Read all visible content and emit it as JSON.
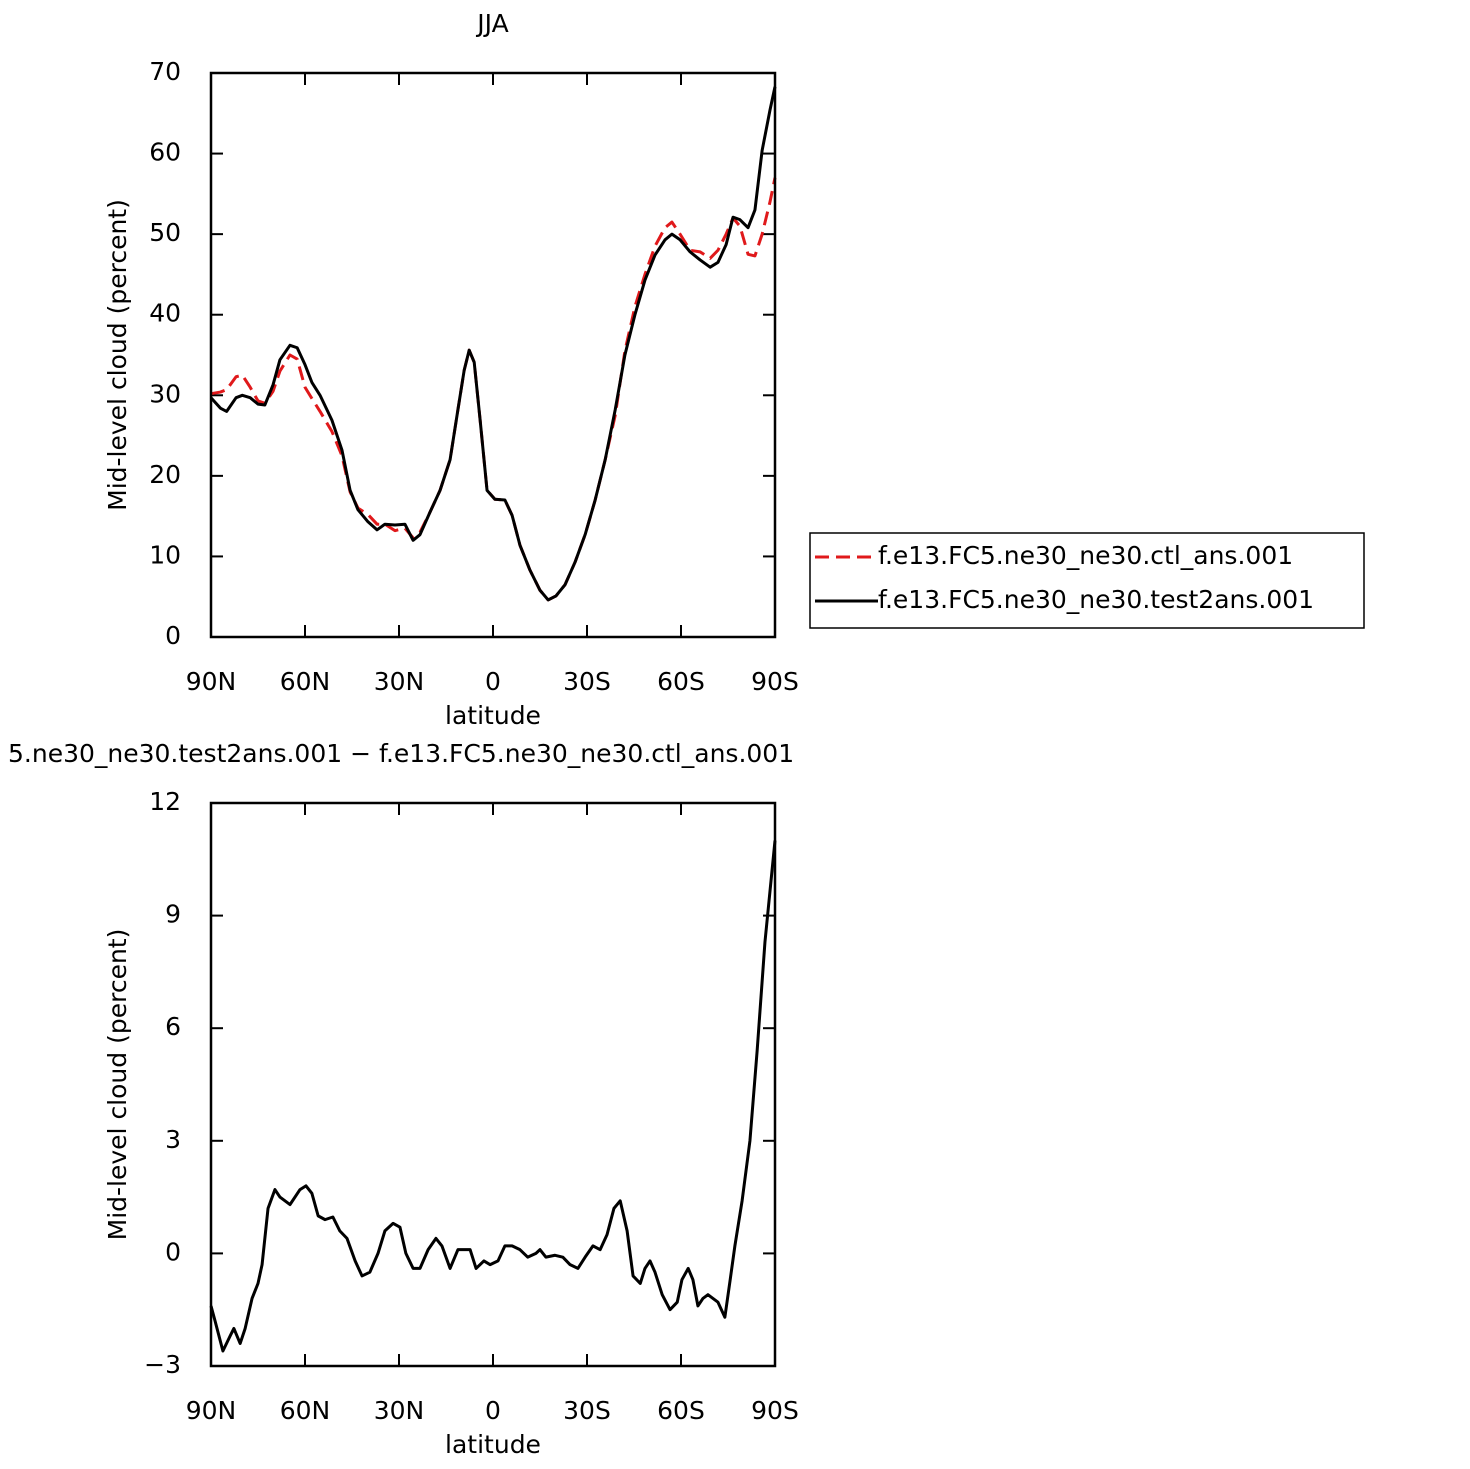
{
  "chart_data": [
    {
      "type": "line",
      "title": "JJA",
      "xlabel": "latitude",
      "ylabel": "Mid-level cloud (percent)",
      "x": [
        90,
        87,
        85,
        82,
        80,
        77.5,
        75,
        72.8,
        70.2,
        68,
        64.8,
        62.5,
        60,
        57.8,
        55.2,
        51.4,
        48.2,
        45.6,
        43.1,
        39.9,
        37,
        34.5,
        31.3,
        28.1,
        25.5,
        23.3,
        20.1,
        16.9,
        13.7,
        11.2,
        9.2,
        7.6,
        6,
        4.1,
        1.9,
        -0.6,
        -3.8,
        -6.1,
        -8.6,
        -11.8,
        -15,
        -17.6,
        -20.1,
        -23,
        -26.2,
        -29.4,
        -32.6,
        -35.8,
        -39,
        -42.1,
        -45.3,
        -48.5,
        -51.7,
        -54.9,
        -57.1,
        -59.7,
        -62.9,
        -66.1,
        -69.3,
        -71.8,
        -74.4,
        -76.6,
        -78.8,
        -81.4,
        -83.6,
        -85.9,
        -88.4,
        -90
      ],
      "series": [
        {
          "name": "f.e13.FC5.ne30_ne30.ctl_ans.001",
          "color": "#e0191b",
          "linestyle": "dashed",
          "values": [
            30.2,
            30.4,
            30.7,
            32.3,
            32.5,
            31,
            29.3,
            29,
            30.5,
            33,
            35,
            34.5,
            31,
            29.6,
            28,
            25.5,
            22.5,
            18,
            16,
            15.2,
            14,
            14,
            13.2,
            13.5,
            12.3,
            13,
            15.5,
            18.2,
            22,
            28.2,
            33.1,
            35.6,
            34.1,
            26.9,
            18.2,
            17.1,
            17,
            15.1,
            11.4,
            8.3,
            5.8,
            4.6,
            5.1,
            6.5,
            9.3,
            12.7,
            17,
            22,
            27.5,
            35.5,
            41,
            45,
            48.5,
            50.8,
            51.5,
            50,
            48,
            47.8,
            47,
            48,
            50,
            52,
            51,
            47.5,
            47.3,
            50,
            54,
            57
          ]
        },
        {
          "name": "f.e13.FC5.ne30_ne30.test2ans.001",
          "color": "#000000",
          "linestyle": "solid",
          "values": [
            29.7,
            28.4,
            28,
            29.7,
            30,
            29.7,
            28.9,
            28.8,
            31.3,
            34.4,
            36.2,
            35.9,
            33.8,
            31.6,
            30,
            26.9,
            23.2,
            18.2,
            15.8,
            14.3,
            13.3,
            14,
            13.9,
            14,
            12,
            12.7,
            15.5,
            18.2,
            22,
            28.2,
            33.1,
            35.6,
            34.1,
            26.9,
            18.2,
            17.1,
            17,
            15.1,
            11.4,
            8.3,
            5.8,
            4.6,
            5.1,
            6.5,
            9.3,
            12.7,
            17,
            22,
            28.2,
            35,
            40,
            44.3,
            47.4,
            49.3,
            50,
            49.3,
            47.8,
            46.8,
            45.9,
            46.5,
            48.7,
            52.1,
            51.8,
            50.8,
            53,
            60.4,
            65.4,
            68.3
          ]
        }
      ],
      "xlim": [
        90,
        -90
      ],
      "xticks": [
        {
          "value": 90,
          "label": "90N"
        },
        {
          "value": 60,
          "label": "60N"
        },
        {
          "value": 30,
          "label": "30N"
        },
        0,
        {
          "value": -30,
          "label": "30S"
        },
        {
          "value": -60,
          "label": "60S"
        },
        {
          "value": -90,
          "label": "90S"
        }
      ],
      "ylim": [
        0,
        70
      ],
      "yticks": [
        0,
        10,
        20,
        30,
        40,
        50,
        60,
        70
      ],
      "legend": "right"
    },
    {
      "type": "line",
      "title": "5.ne30_ne30.test2ans.001 − f.e13.FC5.ne30_ne30.ctl_ans.001",
      "xlabel": "latitude",
      "ylabel": "Mid-level cloud (percent)",
      "x": [
        90,
        88.7,
        86.2,
        83.9,
        82.7,
        80.7,
        79.1,
        76.9,
        75,
        73.7,
        71.8,
        69.6,
        68,
        64.8,
        61.6,
        59.7,
        57.8,
        55.8,
        53.6,
        51.1,
        48.9,
        46.6,
        44,
        41.8,
        39.3,
        36.7,
        34.5,
        31.9,
        29.7,
        27.8,
        25.5,
        23.3,
        20.7,
        18.2,
        16.3,
        13.7,
        11.2,
        8.9,
        7.3,
        5.4,
        2.9,
        0.9,
        -1.6,
        -3.8,
        -6.1,
        -8.6,
        -11.1,
        -13.7,
        -15,
        -16.9,
        -19.8,
        -22.3,
        -24.6,
        -27.1,
        -29.4,
        -31.9,
        -34.2,
        -36.4,
        -38.6,
        -40.6,
        -42.8,
        -44.7,
        -47,
        -48.5,
        -50.1,
        -51.7,
        -54,
        -56.5,
        -58.8,
        -60.3,
        -62.3,
        -63.8,
        -65.4,
        -67,
        -68.6,
        -70.2,
        -71.8,
        -74,
        -75.7,
        -77.2,
        -79.5,
        -82,
        -84.3,
        -86.8,
        -90
      ],
      "values": [
        -1.4,
        -1.8,
        -2.6,
        -2.2,
        -2,
        -2.4,
        -2,
        -1.2,
        -0.8,
        -0.3,
        1.2,
        1.7,
        1.5,
        1.3,
        1.7,
        1.8,
        1.6,
        1,
        0.9,
        0.97,
        0.6,
        0.4,
        -0.2,
        -0.6,
        -0.5,
        0,
        0.6,
        0.8,
        0.7,
        0,
        -0.4,
        -0.4,
        0.1,
        0.4,
        0.2,
        -0.4,
        0.1,
        0.1,
        0.1,
        -0.4,
        -0.2,
        -0.3,
        -0.2,
        0.2,
        0.2,
        0.1,
        -0.1,
        0,
        0.1,
        -0.1,
        -0.05,
        -0.1,
        -0.3,
        -0.4,
        -0.1,
        0.2,
        0.1,
        0.5,
        1.2,
        1.4,
        0.6,
        -0.6,
        -0.8,
        -0.4,
        -0.2,
        -0.5,
        -1.1,
        -1.5,
        -1.3,
        -0.7,
        -0.4,
        -0.7,
        -1.4,
        -1.2,
        -1.1,
        -1.2,
        -1.3,
        -1.7,
        -0.7,
        0.2,
        1.4,
        3,
        5.4,
        8.3,
        11
      ],
      "color": "#000000",
      "linestyle": "solid",
      "xlim": [
        90,
        -90
      ],
      "xticks": [
        {
          "value": 90,
          "label": "90N"
        },
        {
          "value": 60,
          "label": "60N"
        },
        {
          "value": 30,
          "label": "30N"
        },
        0,
        {
          "value": -30,
          "label": "30S"
        },
        {
          "value": -60,
          "label": "60S"
        },
        {
          "value": -90,
          "label": "90S"
        }
      ],
      "ylim": [
        -3,
        12
      ],
      "yticks": [
        {
          "value": -3,
          "label": "−3"
        },
        0,
        3,
        6,
        9,
        12
      ]
    }
  ]
}
